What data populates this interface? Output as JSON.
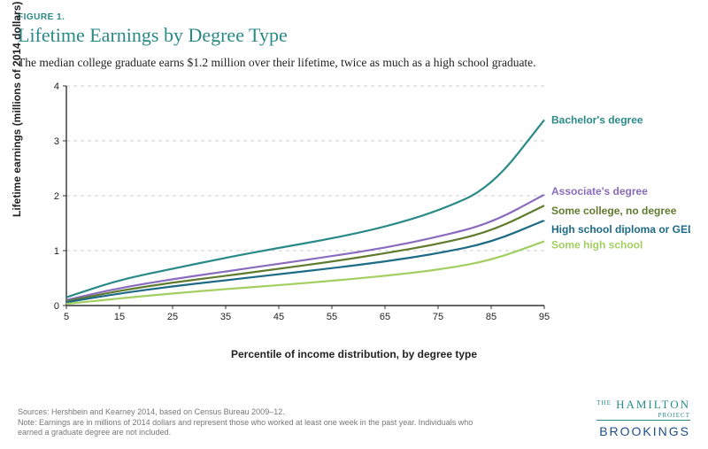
{
  "figure_label": "FIGURE 1.",
  "title": "Lifetime Earnings by Degree Type",
  "subtitle": "The median college graduate earns $1.2 million over their lifetime, twice as much as a high school graduate.",
  "chart": {
    "type": "line",
    "background_color": "#ffffff",
    "grid_color": "#cccccc",
    "grid_dash": "4 4",
    "line_width": 2.2,
    "x": {
      "label": "Percentile of income distribution, by degree type",
      "min": 5,
      "max": 95,
      "ticks": [
        5,
        15,
        25,
        35,
        45,
        55,
        65,
        75,
        85,
        95
      ],
      "label_fontsize": 12,
      "tick_fontsize": 11
    },
    "y": {
      "label": "Lifetime earnings (millions of 2014 dollars)",
      "min": 0,
      "max": 4,
      "ticks": [
        0,
        1,
        2,
        3,
        4
      ],
      "label_fontsize": 12,
      "tick_fontsize": 11
    },
    "percentiles": [
      5,
      15,
      25,
      35,
      45,
      55,
      65,
      75,
      85,
      95
    ],
    "series": [
      {
        "id": "bachelors",
        "label": "Bachelor's degree",
        "color": "#2a8a88",
        "y": [
          0.15,
          0.47,
          0.67,
          0.87,
          1.05,
          1.22,
          1.43,
          1.72,
          2.15,
          3.38
        ]
      },
      {
        "id": "associates",
        "label": "Associate's degree",
        "color": "#8a6bbf",
        "y": [
          0.1,
          0.32,
          0.48,
          0.62,
          0.76,
          0.9,
          1.05,
          1.25,
          1.5,
          2.02
        ]
      },
      {
        "id": "some_college",
        "label": "Some college, no degree",
        "color": "#5f7b2d",
        "y": [
          0.08,
          0.27,
          0.42,
          0.54,
          0.67,
          0.8,
          0.95,
          1.12,
          1.35,
          1.82
        ]
      },
      {
        "id": "high_school",
        "label": "High school diploma or GED",
        "color": "#1d6b86",
        "y": [
          0.06,
          0.22,
          0.35,
          0.46,
          0.57,
          0.68,
          0.8,
          0.95,
          1.15,
          1.55
        ]
      },
      {
        "id": "some_hs",
        "label": "Some high school",
        "color": "#a3cf62",
        "y": [
          0.03,
          0.13,
          0.22,
          0.3,
          0.37,
          0.45,
          0.54,
          0.65,
          0.82,
          1.17
        ]
      }
    ],
    "label_fontsize": 12
  },
  "notes": {
    "sources": "Sources: Hershbein and Kearney 2014, based on Census Bureau 2009–12.",
    "note": "Note: Earnings are in millions of 2014 dollars and represent those who worked at least one week in the past year. Individuals who earned a graduate degree are not included."
  },
  "logos": {
    "hamilton_the": "THE",
    "hamilton_main": "HAMILTON",
    "hamilton_sub": "PROJECT",
    "hamilton_color": "#2a8a88",
    "brookings": "BROOKINGS",
    "brookings_color": "#1d4e89"
  }
}
